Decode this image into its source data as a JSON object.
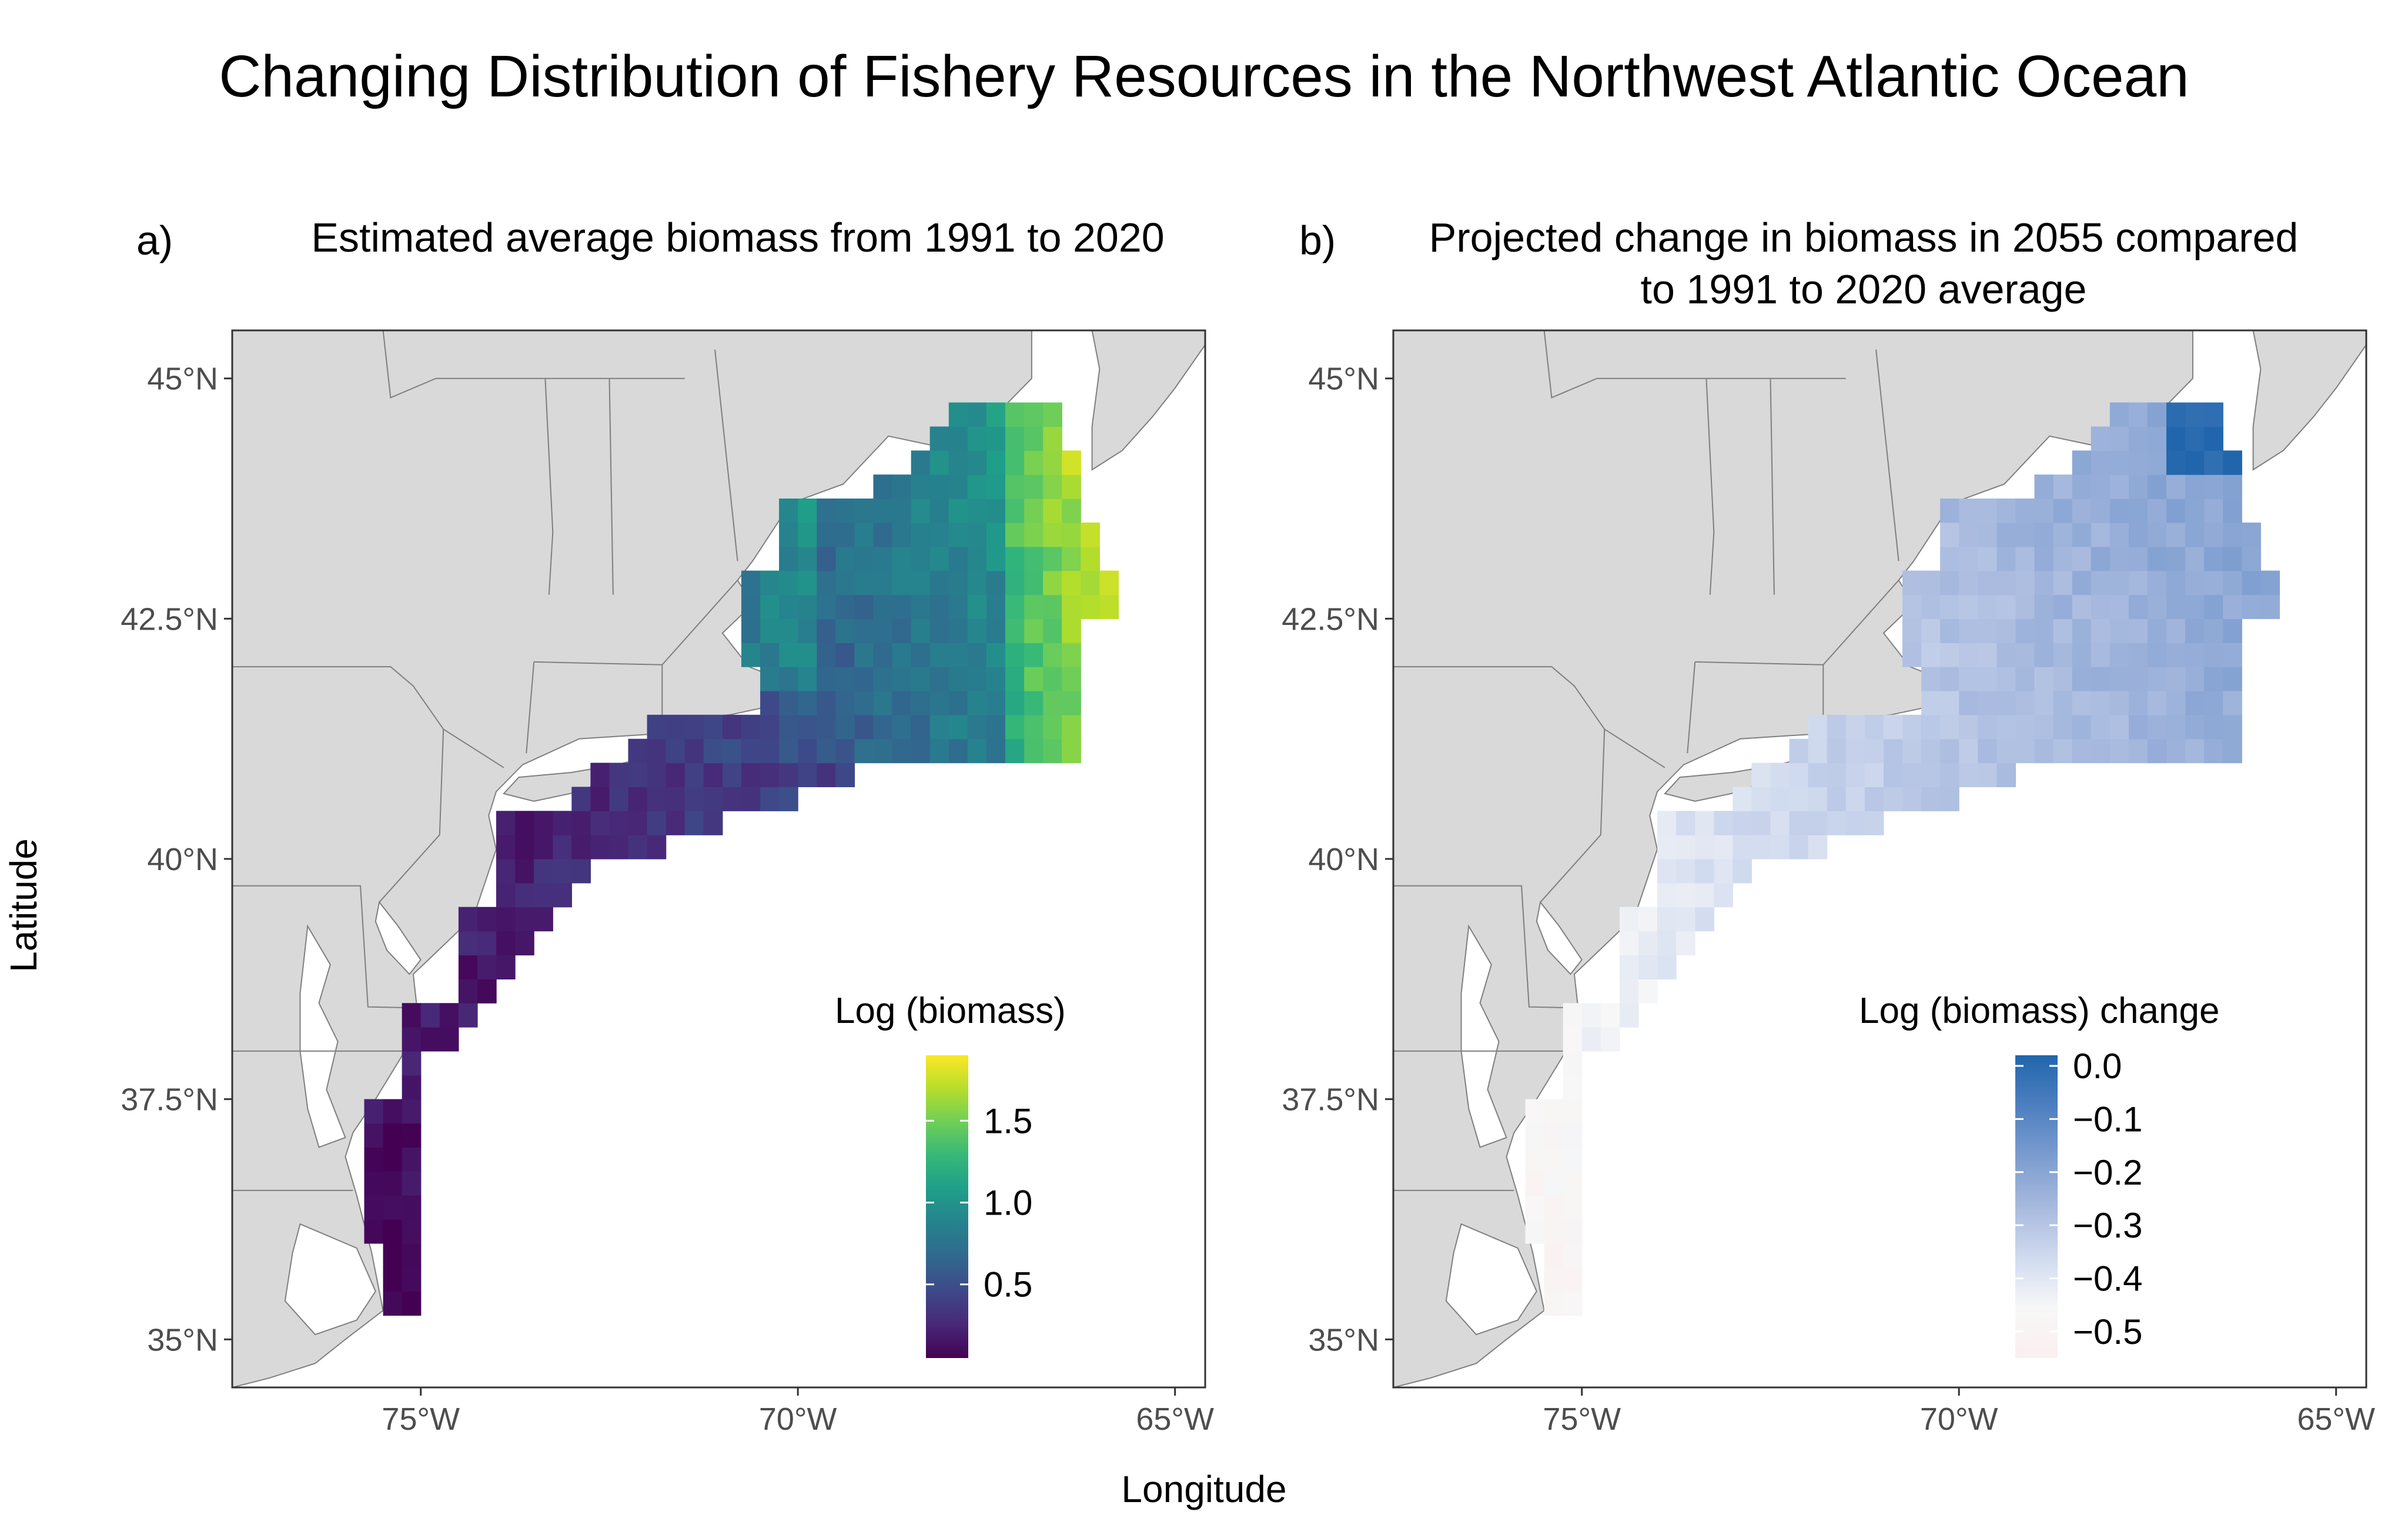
{
  "title": "Changing Distribution of Fishery Resources in the Northwest Atlantic Ocean",
  "x_axis_title": "Longitude",
  "y_axis_title": "Latitude",
  "map": {
    "lon_range": [
      -77.5,
      -64.6
    ],
    "lat_range": [
      34.5,
      45.5
    ],
    "x_ticks": [
      {
        "value": -75,
        "label": "75°W"
      },
      {
        "value": -70,
        "label": "70°W"
      },
      {
        "value": -65,
        "label": "65°W"
      }
    ],
    "y_ticks": [
      {
        "value": 35,
        "label": "35°N"
      },
      {
        "value": 37.5,
        "label": "37.5°N"
      },
      {
        "value": 40,
        "label": "40°N"
      },
      {
        "value": 42.5,
        "label": "42.5°N"
      },
      {
        "value": 45,
        "label": "45°N"
      }
    ],
    "land_color": "#d9d9d9",
    "border_color": "#7f7f7f"
  },
  "panels": [
    {
      "tag": "a)",
      "title_lines": [
        "Estimated average biomass from 1991 to 2020"
      ],
      "legend": {
        "title": "Log (biomass)",
        "palette": "viridis",
        "range": [
          0.05,
          1.9
        ],
        "ticks": [
          {
            "value": 0.5,
            "label": "0.5"
          },
          {
            "value": 1.0,
            "label": "1.0"
          },
          {
            "value": 1.5,
            "label": "1.5"
          }
        ]
      }
    },
    {
      "tag": "b)",
      "title_lines": [
        "Projected change in biomass in 2055 compared",
        "to 1991 to 2020 average"
      ],
      "legend": {
        "title": "Log (biomass) change",
        "palette": "blues",
        "range": [
          -0.55,
          0.02
        ],
        "ticks": [
          {
            "value": 0.0,
            "label": "0.0"
          },
          {
            "value": -0.1,
            "label": "−0.1"
          },
          {
            "value": -0.2,
            "label": "−0.2"
          },
          {
            "value": -0.3,
            "label": "−0.3"
          },
          {
            "value": -0.4,
            "label": "−0.4"
          },
          {
            "value": -0.5,
            "label": "−0.5"
          }
        ]
      }
    }
  ],
  "colors": {
    "viridis": [
      "#440154",
      "#482878",
      "#3e4989",
      "#31688e",
      "#26828e",
      "#1f9e89",
      "#35b779",
      "#6ece58",
      "#b5de2b",
      "#fde725"
    ],
    "blues": [
      "#2166ac",
      "#4d7fc0",
      "#7b9ccf",
      "#a7b9de",
      "#d0daef",
      "#f7f7f7",
      "#fbeff0"
    ]
  }
}
